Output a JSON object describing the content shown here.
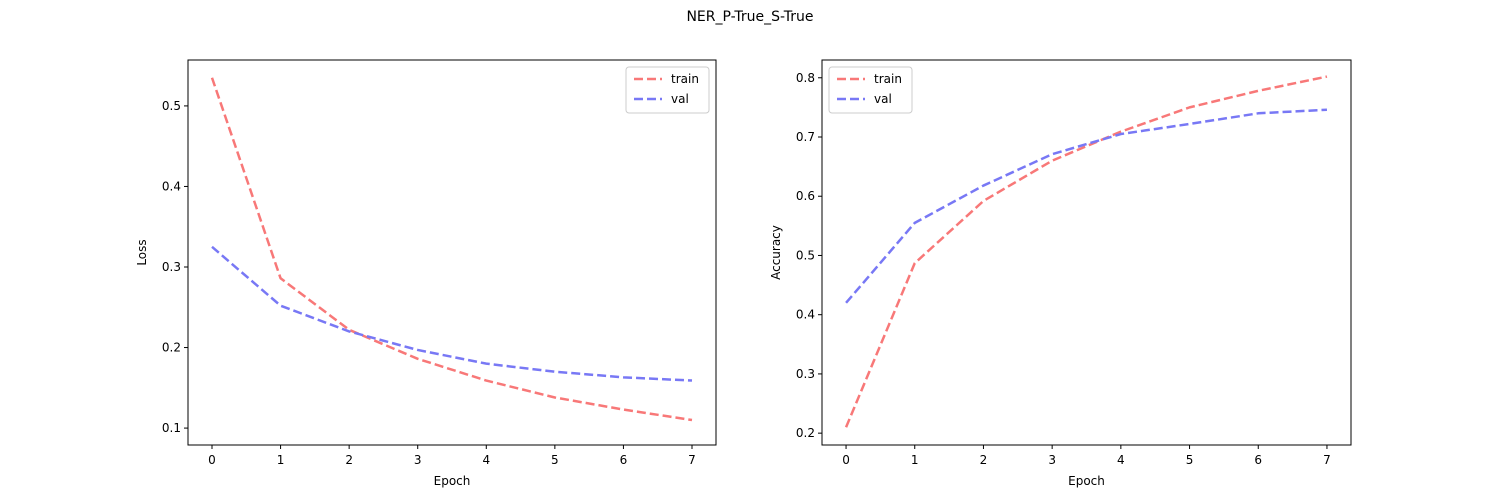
{
  "figure": {
    "title": "NER_P-True_S-True"
  },
  "chart_data": [
    {
      "type": "line",
      "xlabel": "Epoch",
      "ylabel": "Loss",
      "x": [
        0,
        1,
        2,
        3,
        4,
        5,
        6,
        7
      ],
      "xticks": [
        "0",
        "1",
        "2",
        "3",
        "4",
        "5",
        "6",
        "7"
      ],
      "yticks": [
        0.1,
        0.2,
        0.3,
        0.4,
        0.5
      ],
      "ytick_labels": [
        "0.1",
        "0.2",
        "0.3",
        "0.4",
        "0.5"
      ],
      "xlim": [
        -0.35,
        7.35
      ],
      "ylim": [
        0.079,
        0.557
      ],
      "legend_position": "top-right",
      "grid": false,
      "series": [
        {
          "name": "train",
          "color": "#f87878",
          "values": [
            0.535,
            0.286,
            0.222,
            0.186,
            0.159,
            0.138,
            0.123,
            0.11
          ]
        },
        {
          "name": "val",
          "color": "#7878f5",
          "values": [
            0.325,
            0.252,
            0.22,
            0.197,
            0.18,
            0.17,
            0.163,
            0.159
          ]
        }
      ]
    },
    {
      "type": "line",
      "xlabel": "Epoch",
      "ylabel": "Accuracy",
      "x": [
        0,
        1,
        2,
        3,
        4,
        5,
        6,
        7
      ],
      "xticks": [
        "0",
        "1",
        "2",
        "3",
        "4",
        "5",
        "6",
        "7"
      ],
      "yticks": [
        0.2,
        0.3,
        0.4,
        0.5,
        0.6,
        0.7,
        0.8
      ],
      "ytick_labels": [
        "0.2",
        "0.3",
        "0.4",
        "0.5",
        "0.6",
        "0.7",
        "0.8"
      ],
      "xlim": [
        -0.35,
        7.35
      ],
      "ylim": [
        0.18,
        0.83
      ],
      "legend_position": "top-left",
      "grid": false,
      "series": [
        {
          "name": "train",
          "color": "#f87878",
          "values": [
            0.21,
            0.487,
            0.592,
            0.66,
            0.709,
            0.75,
            0.778,
            0.802
          ]
        },
        {
          "name": "val",
          "color": "#7878f5",
          "values": [
            0.42,
            0.555,
            0.618,
            0.671,
            0.705,
            0.722,
            0.74,
            0.746
          ]
        }
      ]
    }
  ]
}
